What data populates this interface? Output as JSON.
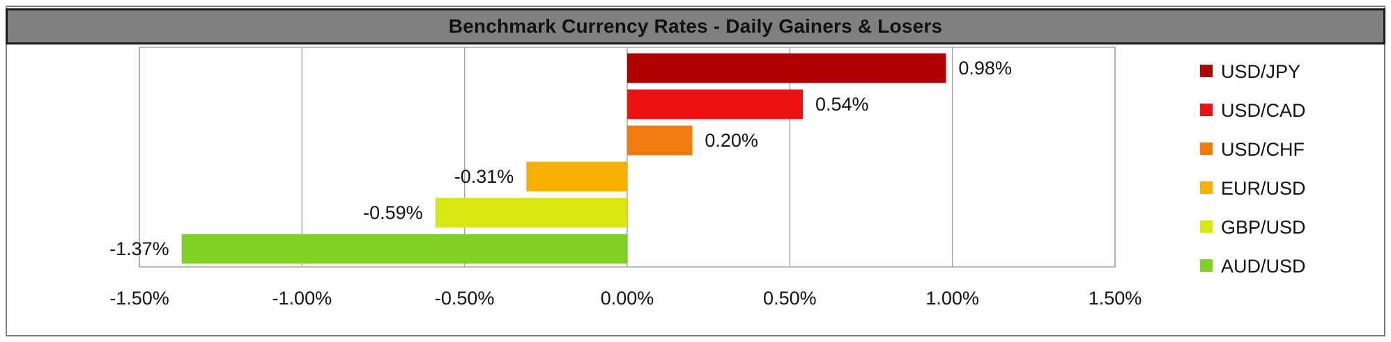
{
  "chart_data": {
    "type": "bar",
    "orientation": "horizontal",
    "title": "Benchmark Currency Rates - Daily Gainers & Losers",
    "categories": [
      "USD/JPY",
      "USD/CAD",
      "USD/CHF",
      "EUR/USD",
      "GBP/USD",
      "AUD/USD"
    ],
    "values": [
      0.98,
      0.54,
      0.2,
      -0.31,
      -0.59,
      -1.37
    ],
    "data_labels": [
      "0.98%",
      "0.54%",
      "0.20%",
      "-0.31%",
      "-0.59%",
      "-1.37%"
    ],
    "colors": [
      "#b00000",
      "#ee1111",
      "#f07c10",
      "#f5b000",
      "#d8e810",
      "#7fd224"
    ],
    "xlim": [
      -1.5,
      1.5
    ],
    "xticks": [
      -1.5,
      -1.0,
      -0.5,
      0.0,
      0.5,
      1.0,
      1.5
    ],
    "xtick_labels": [
      "-1.50%",
      "-1.00%",
      "-0.50%",
      "0.00%",
      "0.50%",
      "1.00%",
      "1.50%"
    ],
    "grid": true,
    "legend": "right"
  }
}
